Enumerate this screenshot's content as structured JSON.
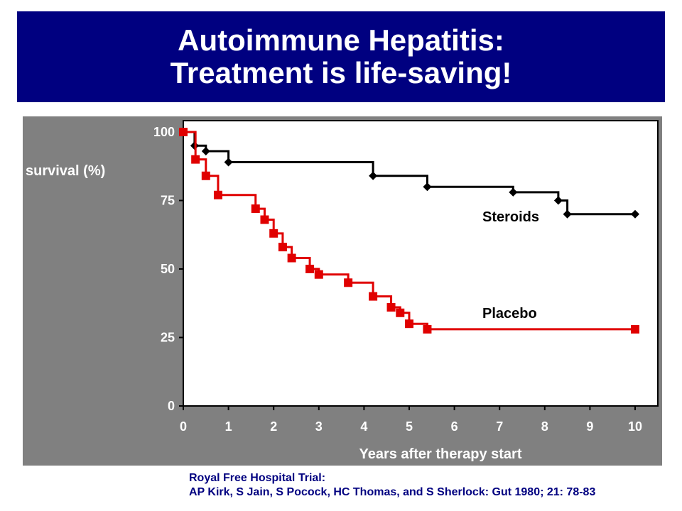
{
  "slide": {
    "title_line1": "Autoimmune Hepatitis:",
    "title_line2": "Treatment is life-saving!",
    "title_bg": "#000080",
    "panel_bg": "#808080",
    "citation_line1": "Royal Free Hospital Trial:",
    "citation_line2": "AP Kirk, S Jain, S Pocock, HC Thomas, and S Sherlock: Gut 1980; 21: 78-83",
    "citation_color": "#000080"
  },
  "chart_data": {
    "type": "line",
    "step": true,
    "title": "",
    "xlabel": "Years after therapy start",
    "ylabel": "survival (%)",
    "xlim": [
      0,
      10
    ],
    "ylim": [
      0,
      100
    ],
    "xticks": [
      "0",
      "1",
      "2",
      "3",
      "4",
      "5",
      "6",
      "7",
      "8",
      "9",
      "10"
    ],
    "yticks": [
      "0",
      "25",
      "50",
      "75",
      "100"
    ],
    "grid": false,
    "series": [
      {
        "name": "Steroids",
        "color": "#000000",
        "marker": "diamond",
        "x": [
          0,
          0.25,
          0.5,
          1.0,
          4.2,
          5.4,
          7.3,
          8.3,
          8.5,
          10
        ],
        "y": [
          100,
          95,
          93,
          89,
          84,
          80,
          78,
          75,
          70,
          70
        ]
      },
      {
        "name": "Placebo",
        "color": "#e00000",
        "marker": "square",
        "x": [
          0,
          0.27,
          0.5,
          0.77,
          1.6,
          1.8,
          2.0,
          2.2,
          2.4,
          2.8,
          3.0,
          3.65,
          4.2,
          4.6,
          4.8,
          5.0,
          5.4,
          10
        ],
        "y": [
          100,
          90,
          84,
          77,
          72,
          68,
          63,
          58,
          54,
          50,
          48,
          45,
          40,
          36,
          34,
          30,
          28,
          28
        ]
      }
    ]
  }
}
